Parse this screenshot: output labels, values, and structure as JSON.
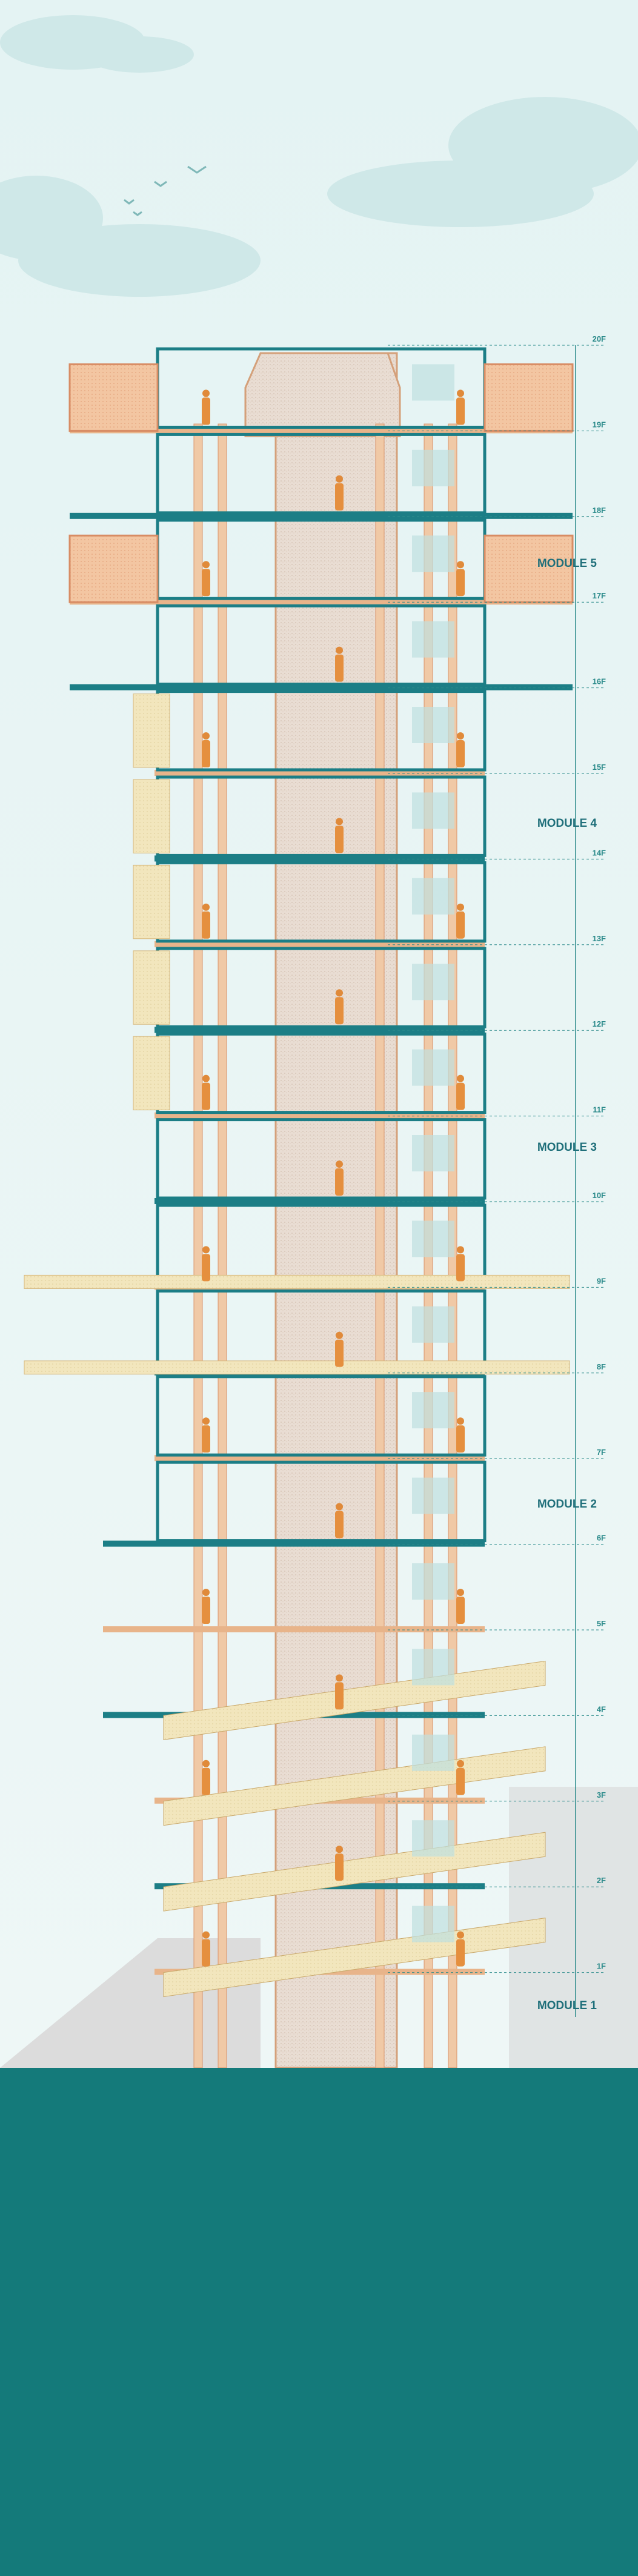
{
  "levels": [
    "20F",
    "19F",
    "18F",
    "17F",
    "16F",
    "15F",
    "14F",
    "13F",
    "12F",
    "11F",
    "10F",
    "9F",
    "8F",
    "7F",
    "6F",
    "5F",
    "4F",
    "3F",
    "2F",
    "1F"
  ],
  "modules": [
    "MODULE 5",
    "MODULE 4",
    "MODULE 3",
    "MODULE 2",
    "MODULE 1"
  ]
}
